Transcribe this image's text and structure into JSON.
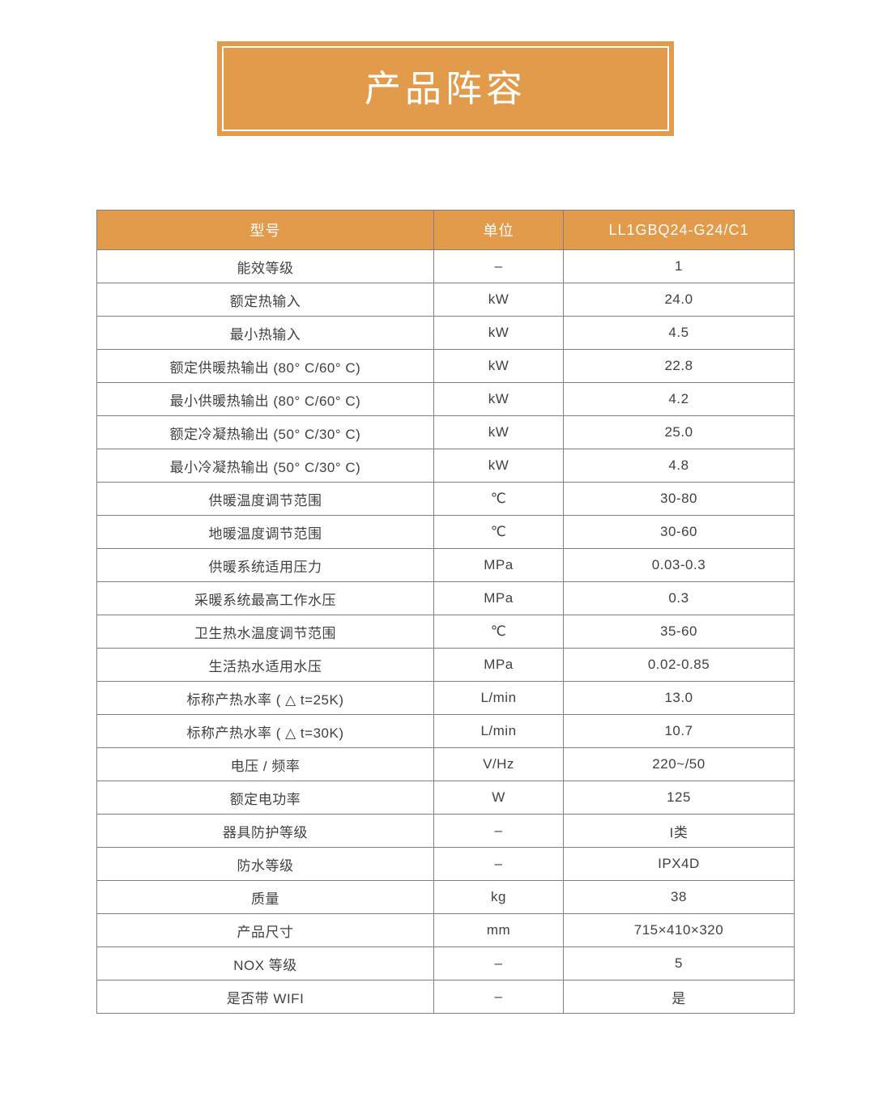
{
  "colors": {
    "accent_orange": "#E29A4B",
    "grid_border": "#808080",
    "body_text": "#434040",
    "header_text": "#FFFFFF",
    "page_background": "#FFFFFF"
  },
  "banner": {
    "title": "产品阵容"
  },
  "table": {
    "header": {
      "model_label": "型号",
      "unit_label": "单位",
      "model_value": "LL1GBQ24-G24/C1"
    },
    "rows": [
      {
        "label": "能效等级",
        "unit": "–",
        "value": "1"
      },
      {
        "label": "额定热输入",
        "unit": "kW",
        "value": "24.0"
      },
      {
        "label": "最小热输入",
        "unit": "kW",
        "value": "4.5"
      },
      {
        "label": "额定供暖热输出 (80° C/60° C)",
        "unit": "kW",
        "value": "22.8"
      },
      {
        "label": "最小供暖热输出 (80° C/60° C)",
        "unit": "kW",
        "value": "4.2"
      },
      {
        "label": "额定冷凝热输出 (50° C/30° C)",
        "unit": "kW",
        "value": "25.0"
      },
      {
        "label": "最小冷凝热输出 (50° C/30° C)",
        "unit": "kW",
        "value": "4.8"
      },
      {
        "label": "供暖温度调节范围",
        "unit": "℃",
        "value": "30-80"
      },
      {
        "label": "地暖温度调节范围",
        "unit": "℃",
        "value": "30-60"
      },
      {
        "label": "供暖系统适用压力",
        "unit": "MPa",
        "value": "0.03-0.3"
      },
      {
        "label": "采暖系统最高工作水压",
        "unit": "MPa",
        "value": "0.3"
      },
      {
        "label": "卫生热水温度调节范围",
        "unit": "℃",
        "value": "35-60"
      },
      {
        "label": "生活热水适用水压",
        "unit": "MPa",
        "value": "0.02-0.85"
      },
      {
        "label": "标称产热水率 ( △ t=25K)",
        "unit": "L/min",
        "value": "13.0"
      },
      {
        "label": "标称产热水率 ( △ t=30K)",
        "unit": "L/min",
        "value": "10.7"
      },
      {
        "label": "电压 / 频率",
        "unit": "V/Hz",
        "value": "220~/50"
      },
      {
        "label": "额定电功率",
        "unit": "W",
        "value": "125"
      },
      {
        "label": "器具防护等级",
        "unit": "–",
        "value": "I类"
      },
      {
        "label": "防水等级",
        "unit": "–",
        "value": "IPX4D"
      },
      {
        "label": "质量",
        "unit": "kg",
        "value": "38"
      },
      {
        "label": "产品尺寸",
        "unit": "mm",
        "value": "715×410×320"
      },
      {
        "label": "NOX 等级",
        "unit": "–",
        "value": "5"
      },
      {
        "label": "是否带 WIFI",
        "unit": "–",
        "value": "是"
      }
    ]
  }
}
